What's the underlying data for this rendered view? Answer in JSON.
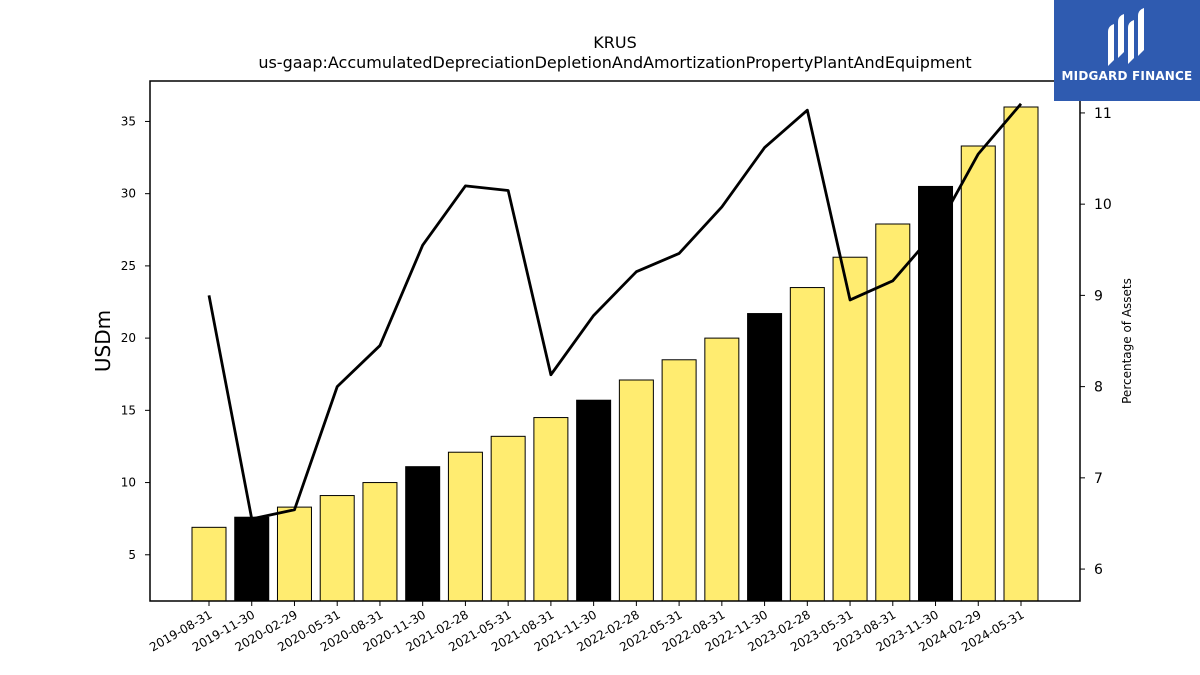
{
  "chart_data": {
    "type": "bar",
    "title": "KRUS",
    "subtitle": "us-gaap:AccumulatedDepreciationDepletionAndAmortizationPropertyPlantAndEquipment",
    "ylabel": "USDm",
    "y2label": "Percentage of Assets",
    "ylim": [
      1.8,
      37.8
    ],
    "y2lim": [
      5.65,
      11.35
    ],
    "yticks": [
      5,
      10,
      15,
      20,
      25,
      30,
      35
    ],
    "y2ticks": [
      6,
      7,
      8,
      9,
      10,
      11
    ],
    "categories": [
      "2019-08-31",
      "2019-11-30",
      "2020-02-29",
      "2020-05-31",
      "2020-08-31",
      "2020-11-30",
      "2021-02-28",
      "2021-05-31",
      "2021-08-31",
      "2021-11-30",
      "2022-02-28",
      "2022-05-31",
      "2022-08-31",
      "2022-11-30",
      "2023-02-28",
      "2023-05-31",
      "2023-08-31",
      "2023-11-30",
      "2024-02-29",
      "2024-05-31"
    ],
    "series": [
      {
        "axis": "left",
        "kind": "bar",
        "values": [
          6.9,
          7.6,
          8.3,
          9.1,
          10.0,
          11.1,
          12.1,
          13.2,
          14.5,
          15.7,
          17.1,
          18.5,
          20.0,
          21.7,
          23.5,
          25.6,
          27.9,
          30.5,
          33.3,
          36.0
        ],
        "colors": [
          "#ffec70",
          "#000000",
          "#ffec70",
          "#ffec70",
          "#ffec70",
          "#000000",
          "#ffec70",
          "#ffec70",
          "#ffec70",
          "#000000",
          "#ffec70",
          "#ffec70",
          "#ffec70",
          "#000000",
          "#ffec70",
          "#ffec70",
          "#ffec70",
          "#000000",
          "#ffec70",
          "#ffec70"
        ]
      },
      {
        "axis": "right",
        "kind": "line",
        "values": [
          9.0,
          6.55,
          6.65,
          8.0,
          8.45,
          9.55,
          10.2,
          10.15,
          8.13,
          8.78,
          9.26,
          9.46,
          9.97,
          10.62,
          11.03,
          8.95,
          9.16,
          9.7,
          10.55,
          11.1
        ],
        "color": "#000000"
      }
    ],
    "grid": false,
    "legend": "none"
  },
  "logo": {
    "text": "MIDGARD FINANCE",
    "background": "#2f5bb0"
  }
}
